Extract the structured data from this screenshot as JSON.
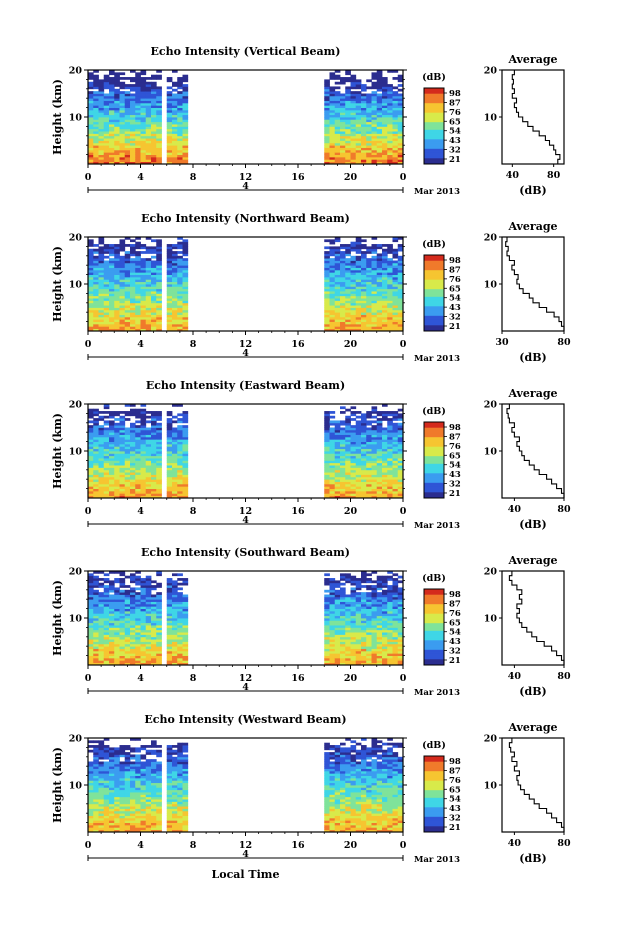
{
  "chart_data": [
    {
      "type": "heatmap",
      "title": "Echo Intensity (Vertical Beam)",
      "ylabel": "Height (km)",
      "yticks": [
        20,
        10
      ],
      "xticks": [
        "0",
        "4",
        "8",
        "12",
        "16",
        "20",
        "0"
      ],
      "date_marker": "4",
      "date_label": "Mar 2013",
      "xlim": [
        0,
        24
      ],
      "ylim": [
        0,
        20
      ],
      "gaps": [
        [
          5.5,
          5.9
        ],
        [
          7.6,
          18.0
        ]
      ],
      "colorbar": {
        "label": "(dB)",
        "ticks": [
          "98",
          "87",
          "76",
          "65",
          "54",
          "43",
          "32",
          "21"
        ]
      },
      "average": {
        "title": "Average",
        "xlabel": "(dB)",
        "xticks": [
          "40",
          "80"
        ],
        "yticks": [
          20,
          10
        ],
        "xlim": [
          30,
          90
        ],
        "profile": [
          [
            84,
            0.5
          ],
          [
            86,
            1.5
          ],
          [
            82,
            2.5
          ],
          [
            80,
            3.5
          ],
          [
            76,
            4.5
          ],
          [
            72,
            5.5
          ],
          [
            66,
            6.5
          ],
          [
            60,
            7.5
          ],
          [
            55,
            8.5
          ],
          [
            50,
            9.5
          ],
          [
            46,
            10.5
          ],
          [
            44,
            11.5
          ],
          [
            42,
            12.5
          ],
          [
            44,
            13.5
          ],
          [
            40,
            14.5
          ],
          [
            42,
            15.5
          ],
          [
            40,
            16.5
          ],
          [
            41,
            17.5
          ],
          [
            40,
            18.5
          ],
          [
            42,
            19.5
          ]
        ]
      }
    },
    {
      "type": "heatmap",
      "title": "Echo Intensity (Northward Beam)",
      "ylabel": "Height (km)",
      "yticks": [
        20,
        10
      ],
      "xticks": [
        "0",
        "4",
        "8",
        "12",
        "16",
        "20",
        "0"
      ],
      "date_marker": "4",
      "date_label": "Mar 2013",
      "xlim": [
        0,
        24
      ],
      "ylim": [
        0,
        20
      ],
      "gaps": [
        [
          5.5,
          5.9
        ],
        [
          7.6,
          18.0
        ]
      ],
      "colorbar": {
        "label": "(dB)",
        "ticks": [
          "98",
          "87",
          "76",
          "65",
          "54",
          "43",
          "32",
          "21"
        ]
      },
      "average": {
        "title": "Average",
        "xlabel": "(dB)",
        "xticks": [
          "30",
          "80"
        ],
        "yticks": [
          20,
          10
        ],
        "xlim": [
          30,
          80
        ],
        "profile": [
          [
            80,
            0.5
          ],
          [
            78,
            1.5
          ],
          [
            76,
            2.5
          ],
          [
            72,
            3.5
          ],
          [
            66,
            4.5
          ],
          [
            60,
            5.5
          ],
          [
            55,
            6.5
          ],
          [
            52,
            7.5
          ],
          [
            47,
            8.5
          ],
          [
            44,
            9.5
          ],
          [
            42,
            10.5
          ],
          [
            43,
            11.5
          ],
          [
            40,
            12.5
          ],
          [
            38,
            13.5
          ],
          [
            40,
            14.5
          ],
          [
            36,
            15.5
          ],
          [
            34,
            16.5
          ],
          [
            35,
            17.5
          ],
          [
            33,
            18.5
          ],
          [
            34,
            19.5
          ]
        ]
      }
    },
    {
      "type": "heatmap",
      "title": "Echo Intensity (Eastward Beam)",
      "ylabel": "Height (km)",
      "yticks": [
        20,
        10
      ],
      "xticks": [
        "0",
        "4",
        "8",
        "12",
        "16",
        "20",
        "0"
      ],
      "date_marker": "4",
      "date_label": "Mar 2013",
      "xlim": [
        0,
        24
      ],
      "ylim": [
        0,
        20
      ],
      "gaps": [
        [
          5.5,
          5.9
        ],
        [
          7.6,
          18.0
        ]
      ],
      "colorbar": {
        "label": "(dB)",
        "ticks": [
          "98",
          "87",
          "76",
          "65",
          "54",
          "43",
          "32",
          "21"
        ]
      },
      "average": {
        "title": "Average",
        "xlabel": "(dB)",
        "xticks": [
          "40",
          "80"
        ],
        "yticks": [
          20,
          10
        ],
        "xlim": [
          30,
          80
        ],
        "profile": [
          [
            80,
            0.5
          ],
          [
            78,
            1.5
          ],
          [
            74,
            2.5
          ],
          [
            70,
            3.5
          ],
          [
            66,
            4.5
          ],
          [
            60,
            5.5
          ],
          [
            56,
            6.5
          ],
          [
            52,
            7.5
          ],
          [
            48,
            8.5
          ],
          [
            46,
            9.5
          ],
          [
            44,
            10.5
          ],
          [
            42,
            11.5
          ],
          [
            44,
            12.5
          ],
          [
            40,
            13.5
          ],
          [
            38,
            14.5
          ],
          [
            40,
            15.5
          ],
          [
            36,
            16.5
          ],
          [
            35,
            17.5
          ],
          [
            34,
            18.5
          ],
          [
            36,
            19.5
          ]
        ]
      }
    },
    {
      "type": "heatmap",
      "title": "Echo Intensity (Southward Beam)",
      "ylabel": "Height (km)",
      "yticks": [
        20,
        10
      ],
      "xticks": [
        "0",
        "4",
        "8",
        "12",
        "16",
        "20",
        "0"
      ],
      "date_marker": "4",
      "date_label": "Mar 2013",
      "xlim": [
        0,
        24
      ],
      "ylim": [
        0,
        20
      ],
      "gaps": [
        [
          5.5,
          5.9
        ],
        [
          7.6,
          18.0
        ]
      ],
      "colorbar": {
        "label": "(dB)",
        "ticks": [
          "98",
          "87",
          "76",
          "65",
          "54",
          "43",
          "32",
          "21"
        ]
      },
      "average": {
        "title": "Average",
        "xlabel": "(dB)",
        "xticks": [
          "40",
          "80"
        ],
        "yticks": [
          20,
          10
        ],
        "xlim": [
          30,
          80
        ],
        "profile": [
          [
            80,
            0.5
          ],
          [
            78,
            1.5
          ],
          [
            74,
            2.5
          ],
          [
            70,
            3.5
          ],
          [
            64,
            4.5
          ],
          [
            58,
            5.5
          ],
          [
            54,
            6.5
          ],
          [
            50,
            7.5
          ],
          [
            46,
            8.5
          ],
          [
            44,
            9.5
          ],
          [
            42,
            10.5
          ],
          [
            44,
            11.5
          ],
          [
            42,
            12.5
          ],
          [
            46,
            13.5
          ],
          [
            44,
            14.5
          ],
          [
            46,
            15.5
          ],
          [
            42,
            16.5
          ],
          [
            38,
            17.5
          ],
          [
            36,
            18.5
          ],
          [
            38,
            19.5
          ]
        ]
      }
    },
    {
      "type": "heatmap",
      "title": "Echo Intensity (Westward Beam)",
      "ylabel": "Height (km)",
      "yticks": [
        20,
        10
      ],
      "xticks": [
        "0",
        "4",
        "8",
        "12",
        "16",
        "20",
        "0"
      ],
      "date_marker": "4",
      "date_label": "Mar 2013",
      "xlabel": "Local Time",
      "xlim": [
        0,
        24
      ],
      "ylim": [
        0,
        20
      ],
      "gaps": [
        [
          5.5,
          5.9
        ],
        [
          7.6,
          18.0
        ]
      ],
      "colorbar": {
        "label": "(dB)",
        "ticks": [
          "98",
          "87",
          "76",
          "65",
          "54",
          "43",
          "32",
          "21"
        ]
      },
      "average": {
        "title": "Average",
        "xlabel": "(dB)",
        "xticks": [
          "40",
          "80"
        ],
        "yticks": [
          20,
          10
        ],
        "xlim": [
          30,
          80
        ],
        "profile": [
          [
            80,
            0.5
          ],
          [
            78,
            1.5
          ],
          [
            74,
            2.5
          ],
          [
            70,
            3.5
          ],
          [
            66,
            4.5
          ],
          [
            60,
            5.5
          ],
          [
            56,
            6.5
          ],
          [
            52,
            7.5
          ],
          [
            48,
            8.5
          ],
          [
            45,
            9.5
          ],
          [
            43,
            10.5
          ],
          [
            42,
            11.5
          ],
          [
            44,
            12.5
          ],
          [
            40,
            13.5
          ],
          [
            42,
            14.5
          ],
          [
            38,
            15.5
          ],
          [
            40,
            16.5
          ],
          [
            37,
            17.5
          ],
          [
            36,
            18.5
          ],
          [
            38,
            19.5
          ]
        ]
      }
    }
  ],
  "colors": {
    "colormap": [
      "#2b2d8f",
      "#2f55d6",
      "#3b9cf0",
      "#3fd6e6",
      "#7fe39a",
      "#d8ea4a",
      "#f6c531",
      "#f07a2b",
      "#d42a1d"
    ]
  }
}
